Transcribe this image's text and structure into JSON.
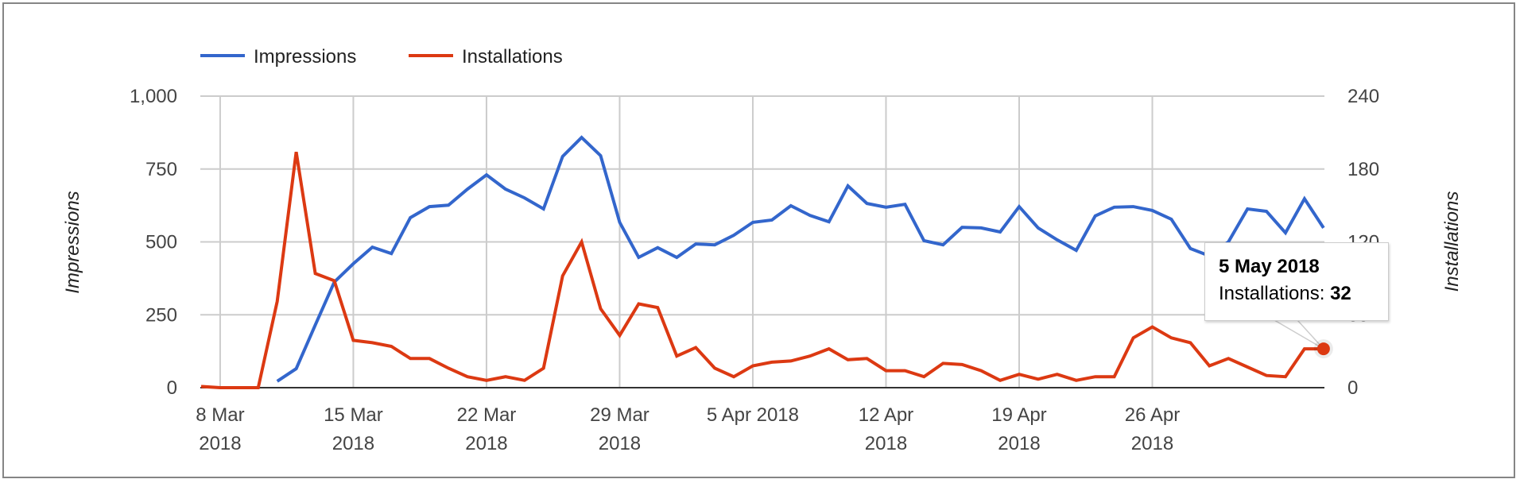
{
  "chart_data": {
    "type": "line",
    "title": "",
    "legend": {
      "position": "top",
      "entries": [
        {
          "name": "Impressions",
          "color": "#3366cc"
        },
        {
          "name": "Installations",
          "color": "#dc3912"
        }
      ]
    },
    "axes": {
      "left": {
        "title": "Impressions",
        "ticks": [
          "0",
          "250",
          "500",
          "750",
          "1,000"
        ],
        "range": [
          0,
          1000
        ]
      },
      "right": {
        "title": "Installations",
        "ticks": [
          "0",
          "60",
          "120",
          "180",
          "240"
        ],
        "range": [
          0,
          240
        ]
      },
      "x": {
        "ticks": [
          {
            "line1": "8 Mar",
            "line2": "2018",
            "day": 1
          },
          {
            "line1": "15 Mar",
            "line2": "2018",
            "day": 8
          },
          {
            "line1": "22 Mar",
            "line2": "2018",
            "day": 15
          },
          {
            "line1": "29 Mar",
            "line2": "2018",
            "day": 22
          },
          {
            "line1": "5 Apr 2018",
            "line2": "",
            "day": 29
          },
          {
            "line1": "12 Apr",
            "line2": "2018",
            "day": 36
          },
          {
            "line1": "19 Apr",
            "line2": "2018",
            "day": 43
          },
          {
            "line1": "26 Apr",
            "line2": "2018",
            "day": 50
          }
        ],
        "grid": true
      }
    },
    "x": [
      "7 Mar",
      "8 Mar",
      "9 Mar",
      "10 Mar",
      "11 Mar",
      "12 Mar",
      "13 Mar",
      "14 Mar",
      "15 Mar",
      "16 Mar",
      "17 Mar",
      "18 Mar",
      "19 Mar",
      "20 Mar",
      "21 Mar",
      "22 Mar",
      "23 Mar",
      "24 Mar",
      "25 Mar",
      "26 Mar",
      "27 Mar",
      "28 Mar",
      "29 Mar",
      "30 Mar",
      "31 Mar",
      "1 Apr",
      "2 Apr",
      "3 Apr",
      "4 Apr",
      "5 Apr",
      "6 Apr",
      "7 Apr",
      "8 Apr",
      "9 Apr",
      "10 Apr",
      "11 Apr",
      "12 Apr",
      "13 Apr",
      "14 Apr",
      "15 Apr",
      "16 Apr",
      "17 Apr",
      "18 Apr",
      "19 Apr",
      "20 Apr",
      "21 Apr",
      "22 Apr",
      "23 Apr",
      "24 Apr",
      "25 Apr",
      "26 Apr",
      "27 Apr",
      "28 Apr",
      "29 Apr",
      "30 Apr",
      "1 May",
      "2 May",
      "3 May",
      "4 May",
      "5 May"
    ],
    "series": [
      {
        "name": "Impressions",
        "axis": "left",
        "color": "#3366cc",
        "values": [
          null,
          null,
          null,
          null,
          22,
          65,
          215,
          362,
          425,
          482,
          460,
          583,
          621,
          626,
          681,
          730,
          681,
          651,
          613,
          793,
          858,
          796,
          567,
          447,
          480,
          447,
          493,
          490,
          523,
          567,
          575,
          624,
          591,
          569,
          692,
          632,
          619,
          629,
          504,
          490,
          550,
          548,
          534,
          621,
          548,
          507,
          471,
          589,
          619,
          621,
          608,
          578,
          477,
          452,
          500,
          613,
          605,
          531,
          648,
          548
        ]
      },
      {
        "name": "Installations",
        "axis": "right",
        "color": "#dc3912",
        "values": [
          1,
          0,
          0,
          0,
          71,
          194,
          94,
          88,
          39,
          37,
          34,
          24,
          24,
          16,
          9,
          6,
          9,
          6,
          16,
          92,
          120,
          65,
          43,
          69,
          66,
          26,
          33,
          16,
          9,
          18,
          21,
          22,
          26,
          32,
          23,
          24,
          14,
          14,
          9,
          20,
          19,
          14,
          6,
          11,
          7,
          11,
          6,
          9,
          9,
          41,
          50,
          41,
          37,
          18,
          24,
          17,
          10,
          9,
          32,
          32
        ]
      }
    ]
  },
  "tooltip": {
    "title": "5 May 2018",
    "label": "Installations:",
    "value": "32",
    "point_index": 59
  }
}
